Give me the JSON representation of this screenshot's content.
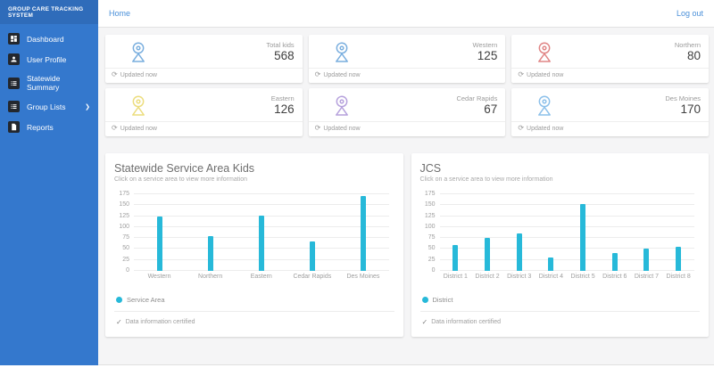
{
  "app": {
    "title": "GROUP CARE TRACKING SYSTEM"
  },
  "topbar": {
    "home_label": "Home",
    "logout_label": "Log out"
  },
  "sidebar": {
    "items": [
      {
        "label": "Dashboard",
        "icon": "dashboard-icon"
      },
      {
        "label": "User Profile",
        "icon": "user-icon"
      },
      {
        "label": "Statewide Summary",
        "icon": "list-icon"
      },
      {
        "label": "Group Lists",
        "icon": "list-icon",
        "chevron": "❯"
      },
      {
        "label": "Reports",
        "icon": "document-icon"
      }
    ]
  },
  "stat_cards": [
    {
      "label": "Total kids",
      "value": "568",
      "updated": "Updated now",
      "pin_color": "#79aede",
      "icon": "location-pin-icon"
    },
    {
      "label": "Western",
      "value": "125",
      "updated": "Updated now",
      "pin_color": "#79aede",
      "icon": "location-pin-icon"
    },
    {
      "label": "Northern",
      "value": "80",
      "updated": "Updated now",
      "pin_color": "#e08585",
      "icon": "location-pin-icon"
    },
    {
      "label": "Eastern",
      "value": "126",
      "updated": "Updated now",
      "pin_color": "#ecdd7d",
      "icon": "location-pin-icon"
    },
    {
      "label": "Cedar Rapids",
      "value": "67",
      "updated": "Updated now",
      "pin_color": "#b5a0dc",
      "icon": "location-pin-icon"
    },
    {
      "label": "Des Moines",
      "value": "170",
      "updated": "Updated now",
      "pin_color": "#8cc0ea",
      "icon": "location-pin-icon"
    }
  ],
  "chart_data": [
    {
      "type": "bar",
      "title": "Statewide Service Area Kids",
      "subtitle": "Click on a service area to view more information",
      "categories": [
        "Western",
        "Northern",
        "Eastern",
        "Cedar Rapids",
        "Des Moines"
      ],
      "values": [
        125,
        80,
        126,
        67,
        170
      ],
      "ylim": [
        0,
        175
      ],
      "yticks": [
        0,
        25,
        50,
        75,
        100,
        125,
        150,
        175
      ],
      "grid": true,
      "legend": "Service Area",
      "legend_position": "bottom",
      "bar_color": "#27b9d9",
      "footer": "Data information certified"
    },
    {
      "type": "bar",
      "title": "JCS",
      "subtitle": "Click on a service area to view more information",
      "categories": [
        "District 1",
        "District 2",
        "District 3",
        "District 4",
        "District 5",
        "District 6",
        "District 7",
        "District 8"
      ],
      "values": [
        60,
        75,
        85,
        30,
        152,
        40,
        50,
        55
      ],
      "ylim": [
        0,
        175
      ],
      "yticks": [
        0,
        25,
        50,
        75,
        100,
        125,
        150,
        175
      ],
      "grid": true,
      "legend": "District",
      "legend_position": "bottom",
      "bar_color": "#27b9d9",
      "footer": "Data information certified"
    }
  ]
}
